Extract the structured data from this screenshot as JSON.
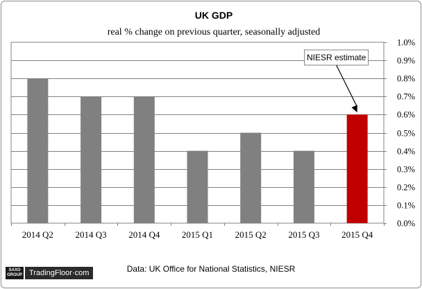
{
  "chart_data": {
    "type": "bar",
    "title": "UK GDP",
    "subtitle": "real % change on previous quarter, seasonally  adjusted",
    "categories": [
      "2014 Q2",
      "2014 Q3",
      "2014 Q4",
      "2015 Q1",
      "2015 Q2",
      "2015 Q3",
      "2015 Q4"
    ],
    "values": [
      0.8,
      0.7,
      0.7,
      0.4,
      0.5,
      0.4,
      0.6
    ],
    "ylim": [
      0,
      1.0
    ],
    "y_ticks": [
      0.0,
      0.1,
      0.2,
      0.3,
      0.4,
      0.5,
      0.6,
      0.7,
      0.8,
      0.9,
      1.0
    ],
    "y_tick_labels": [
      "0.0%",
      "0.1%",
      "0.2%",
      "0.3%",
      "0.4%",
      "0.5%",
      "0.6%",
      "0.7%",
      "0.8%",
      "0.9%",
      "1.0%"
    ],
    "y_axis_side": "right",
    "xlabel": "",
    "ylabel": "",
    "grid": true,
    "bar_color": "#808080",
    "highlight_index": 6,
    "highlight_color": "#c00000",
    "annotation": {
      "text": "NIESR estimate",
      "target_index": 6
    }
  },
  "source_note": "Data: UK Office for National Statistics, NIESR",
  "logo": {
    "brand_line1": "SAXO",
    "brand_line2": "GROUP",
    "wordmark": "TradingFloor·com"
  }
}
